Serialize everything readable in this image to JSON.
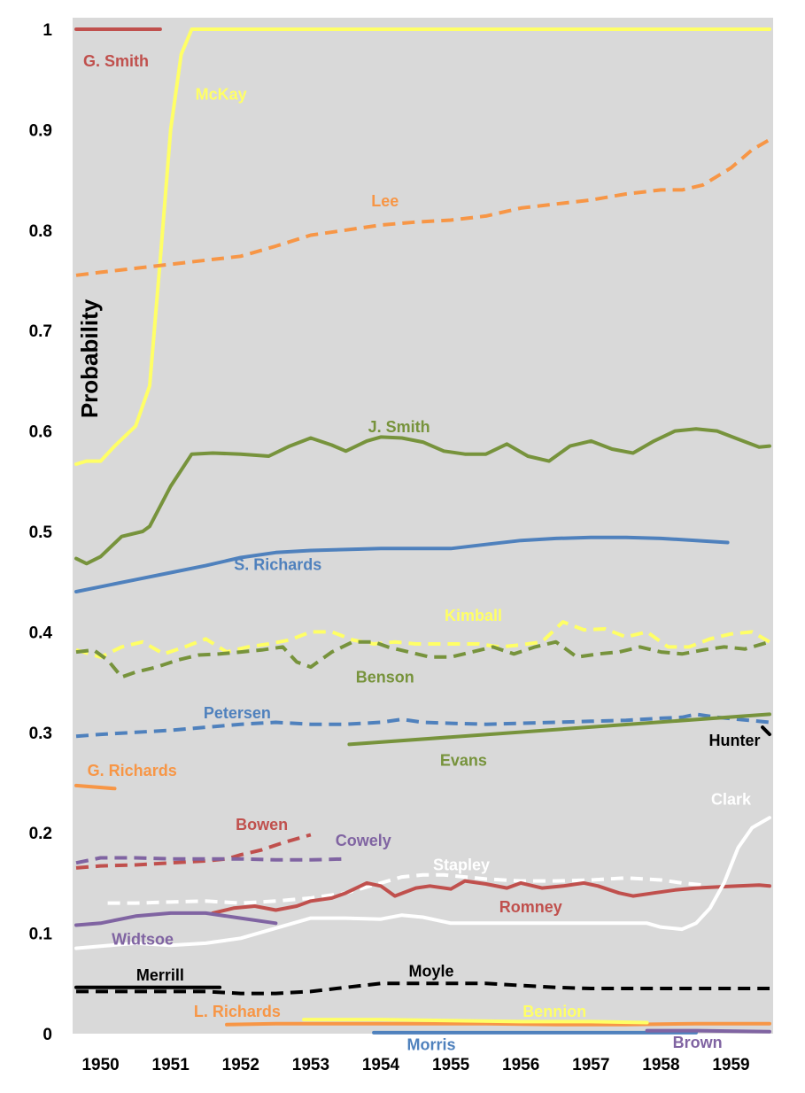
{
  "chart_data": {
    "type": "line",
    "xlabel": "",
    "ylabel": "Probability",
    "xlim": [
      1949.6,
      1959.6
    ],
    "ylim": [
      0,
      1
    ],
    "grid": false,
    "x_ticks": [
      "1950",
      "1951",
      "1952",
      "1953",
      "1954",
      "1955",
      "1956",
      "1957",
      "1958",
      "1959"
    ],
    "y_ticks": [
      "0",
      "0.1",
      "0.2",
      "0.3",
      "0.4",
      "0.5",
      "0.6",
      "0.7",
      "0.8",
      "0.9",
      "1"
    ],
    "colors": {
      "background": "#d9d9d9",
      "red": "#c0504d",
      "yellow": "#ffff66",
      "orange": "#f79646",
      "green": "#77933c",
      "blue": "#4f81bd",
      "purple": "#8064a2",
      "white": "#ffffff",
      "black": "#000000"
    },
    "series": [
      {
        "name": "G. Smith",
        "color": "red",
        "dash": false,
        "x": [
          1949.65,
          1950.85
        ],
        "y": [
          1.0,
          1.0
        ]
      },
      {
        "name": "McKay",
        "color": "yellow",
        "dash": false,
        "x": [
          1949.65,
          1949.8,
          1950.0,
          1950.2,
          1950.5,
          1950.7,
          1950.85,
          1951.0,
          1951.15,
          1951.3,
          1951.5,
          1953,
          1955,
          1957,
          1959.55
        ],
        "y": [
          0.567,
          0.57,
          0.57,
          0.585,
          0.605,
          0.645,
          0.77,
          0.9,
          0.975,
          1.0,
          1.0,
          1.0,
          1.0,
          1.0,
          1.0
        ]
      },
      {
        "name": "Lee",
        "color": "orange",
        "dash": true,
        "x": [
          1949.65,
          1950.0,
          1950.5,
          1951.0,
          1951.5,
          1952.0,
          1952.5,
          1953.0,
          1953.5,
          1954.0,
          1954.5,
          1955.0,
          1955.5,
          1956.0,
          1956.5,
          1957.0,
          1957.5,
          1958.0,
          1958.3,
          1958.6,
          1959.0,
          1959.3,
          1959.55
        ],
        "y": [
          0.755,
          0.758,
          0.762,
          0.766,
          0.77,
          0.774,
          0.784,
          0.795,
          0.8,
          0.805,
          0.808,
          0.81,
          0.814,
          0.822,
          0.826,
          0.83,
          0.836,
          0.84,
          0.84,
          0.845,
          0.862,
          0.88,
          0.89
        ]
      },
      {
        "name": "J. Smith",
        "color": "green",
        "dash": false,
        "x": [
          1949.65,
          1949.8,
          1950.0,
          1950.3,
          1950.6,
          1950.7,
          1951.0,
          1951.3,
          1951.6,
          1952.0,
          1952.4,
          1952.7,
          1953.0,
          1953.3,
          1953.5,
          1953.8,
          1954.0,
          1954.3,
          1954.6,
          1954.9,
          1955.2,
          1955.5,
          1955.8,
          1956.1,
          1956.4,
          1956.7,
          1957.0,
          1957.3,
          1957.6,
          1957.9,
          1958.2,
          1958.5,
          1958.8,
          1959.1,
          1959.4,
          1959.55
        ],
        "y": [
          0.473,
          0.468,
          0.475,
          0.495,
          0.5,
          0.505,
          0.545,
          0.577,
          0.578,
          0.577,
          0.575,
          0.585,
          0.593,
          0.586,
          0.58,
          0.59,
          0.594,
          0.593,
          0.589,
          0.58,
          0.577,
          0.577,
          0.587,
          0.575,
          0.57,
          0.585,
          0.59,
          0.582,
          0.578,
          0.59,
          0.6,
          0.602,
          0.6,
          0.592,
          0.584,
          0.585
        ]
      },
      {
        "name": "S. Richards",
        "color": "blue",
        "dash": false,
        "x": [
          1949.65,
          1950.0,
          1950.5,
          1951.0,
          1951.5,
          1952.0,
          1952.5,
          1953.0,
          1953.5,
          1954.0,
          1954.5,
          1955.0,
          1955.5,
          1956.0,
          1956.5,
          1957.0,
          1957.5,
          1958.0,
          1958.5,
          1958.95
        ],
        "y": [
          0.44,
          0.445,
          0.452,
          0.459,
          0.466,
          0.474,
          0.479,
          0.481,
          0.482,
          0.483,
          0.483,
          0.483,
          0.487,
          0.491,
          0.493,
          0.494,
          0.494,
          0.493,
          0.491,
          0.489
        ]
      },
      {
        "name": "Kimball",
        "color": "yellow",
        "dash": true,
        "x": [
          1949.65,
          1950.0,
          1950.3,
          1950.6,
          1950.9,
          1951.2,
          1951.5,
          1951.8,
          1952.1,
          1952.4,
          1952.7,
          1953.0,
          1953.3,
          1953.6,
          1953.9,
          1954.2,
          1954.5,
          1954.8,
          1955.1,
          1955.4,
          1955.7,
          1956.0,
          1956.3,
          1956.6,
          1956.9,
          1957.2,
          1957.5,
          1957.8,
          1958.1,
          1958.4,
          1958.7,
          1959.0,
          1959.3,
          1959.55
        ],
        "y": [
          0.382,
          0.375,
          0.385,
          0.39,
          0.378,
          0.385,
          0.393,
          0.38,
          0.385,
          0.388,
          0.392,
          0.4,
          0.4,
          0.392,
          0.388,
          0.39,
          0.388,
          0.388,
          0.388,
          0.388,
          0.385,
          0.387,
          0.39,
          0.41,
          0.402,
          0.403,
          0.395,
          0.4,
          0.385,
          0.385,
          0.393,
          0.398,
          0.4,
          0.39
        ]
      },
      {
        "name": "Benson",
        "color": "green",
        "dash": true,
        "x": [
          1949.65,
          1949.9,
          1950.1,
          1950.3,
          1950.5,
          1950.8,
          1951.1,
          1951.4,
          1951.7,
          1952.0,
          1952.3,
          1952.6,
          1952.8,
          1953.0,
          1953.3,
          1953.6,
          1953.9,
          1954.1,
          1954.4,
          1954.7,
          1955.0,
          1955.3,
          1955.6,
          1955.9,
          1956.2,
          1956.5,
          1956.8,
          1957.1,
          1957.4,
          1957.7,
          1958.0,
          1958.3,
          1958.6,
          1958.9,
          1959.2,
          1959.55
        ],
        "y": [
          0.38,
          0.382,
          0.372,
          0.355,
          0.36,
          0.365,
          0.372,
          0.377,
          0.378,
          0.38,
          0.382,
          0.385,
          0.37,
          0.365,
          0.38,
          0.39,
          0.39,
          0.385,
          0.38,
          0.375,
          0.375,
          0.38,
          0.385,
          0.378,
          0.385,
          0.39,
          0.375,
          0.378,
          0.38,
          0.385,
          0.38,
          0.378,
          0.382,
          0.385,
          0.383,
          0.39
        ]
      },
      {
        "name": "Petersen",
        "color": "blue",
        "dash": true,
        "x": [
          1949.65,
          1950.0,
          1950.5,
          1951.0,
          1951.5,
          1952.0,
          1952.5,
          1953.0,
          1953.5,
          1954.0,
          1954.3,
          1954.6,
          1955.0,
          1955.5,
          1956.0,
          1956.5,
          1957.0,
          1957.5,
          1958.0,
          1958.3,
          1958.5,
          1958.8,
          1959.1,
          1959.55
        ],
        "y": [
          0.296,
          0.298,
          0.3,
          0.302,
          0.305,
          0.308,
          0.31,
          0.308,
          0.308,
          0.31,
          0.313,
          0.31,
          0.309,
          0.308,
          0.309,
          0.31,
          0.311,
          0.312,
          0.314,
          0.315,
          0.318,
          0.315,
          0.313,
          0.31
        ]
      },
      {
        "name": "Evans",
        "color": "green",
        "dash": false,
        "x": [
          1953.55,
          1959.55
        ],
        "y": [
          0.288,
          0.318
        ]
      },
      {
        "name": "Hunter",
        "color": "black",
        "dash": false,
        "x": [
          1959.45,
          1959.55
        ],
        "y": [
          0.305,
          0.298
        ]
      },
      {
        "name": "G. Richards",
        "color": "orange",
        "dash": false,
        "x": [
          1949.65,
          1950.2
        ],
        "y": [
          0.247,
          0.244
        ]
      },
      {
        "name": "Bowen",
        "color": "red",
        "dash": true,
        "x": [
          1949.65,
          1950.0,
          1950.5,
          1951.0,
          1951.5,
          1951.8,
          1952.0,
          1952.3,
          1952.6,
          1952.9,
          1953.0
        ],
        "y": [
          0.165,
          0.167,
          0.168,
          0.17,
          0.172,
          0.174,
          0.178,
          0.183,
          0.19,
          0.196,
          0.198
        ]
      },
      {
        "name": "Cowely",
        "color": "purple",
        "dash": true,
        "x": [
          1949.65,
          1950.0,
          1950.5,
          1951.0,
          1951.5,
          1952.0,
          1952.5,
          1953.0,
          1953.5
        ],
        "y": [
          0.17,
          0.175,
          0.175,
          0.174,
          0.174,
          0.174,
          0.173,
          0.173,
          0.174
        ]
      },
      {
        "name": "Stapley",
        "color": "white",
        "dash": true,
        "x": [
          1950.1,
          1950.5,
          1951.0,
          1951.5,
          1952.0,
          1952.5,
          1953.0,
          1953.5,
          1954.0,
          1954.3,
          1954.6,
          1954.9,
          1955.2,
          1955.5,
          1956.0,
          1956.5,
          1957.0,
          1957.5,
          1958.0,
          1958.3,
          1958.6
        ],
        "y": [
          0.13,
          0.13,
          0.131,
          0.132,
          0.13,
          0.132,
          0.135,
          0.14,
          0.15,
          0.156,
          0.158,
          0.158,
          0.156,
          0.154,
          0.152,
          0.152,
          0.153,
          0.155,
          0.153,
          0.15,
          0.148
        ]
      },
      {
        "name": "Romney",
        "color": "red",
        "dash": false,
        "x": [
          1951.6,
          1951.9,
          1952.2,
          1952.5,
          1952.8,
          1953.0,
          1953.3,
          1953.5,
          1953.8,
          1954.0,
          1954.2,
          1954.5,
          1954.7,
          1955.0,
          1955.2,
          1955.5,
          1955.8,
          1956.0,
          1956.3,
          1956.6,
          1956.9,
          1957.1,
          1957.4,
          1957.6,
          1957.9,
          1958.2,
          1958.5,
          1958.8,
          1959.1,
          1959.4,
          1959.55
        ],
        "y": [
          0.12,
          0.125,
          0.127,
          0.123,
          0.127,
          0.132,
          0.135,
          0.14,
          0.15,
          0.147,
          0.137,
          0.145,
          0.147,
          0.144,
          0.152,
          0.149,
          0.145,
          0.15,
          0.145,
          0.147,
          0.15,
          0.147,
          0.14,
          0.137,
          0.14,
          0.143,
          0.145,
          0.146,
          0.147,
          0.148,
          0.147
        ]
      },
      {
        "name": "Clark",
        "color": "white",
        "dash": false,
        "x": [
          1949.65,
          1950.0,
          1950.5,
          1951.0,
          1951.5,
          1952.0,
          1952.5,
          1953.0,
          1953.5,
          1954.0,
          1954.3,
          1954.6,
          1955.0,
          1955.5,
          1956.0,
          1956.5,
          1957.0,
          1957.5,
          1957.8,
          1958.0,
          1958.3,
          1958.5,
          1958.7,
          1958.9,
          1959.1,
          1959.3,
          1959.55
        ],
        "y": [
          0.085,
          0.087,
          0.09,
          0.088,
          0.09,
          0.095,
          0.105,
          0.115,
          0.115,
          0.114,
          0.118,
          0.116,
          0.11,
          0.11,
          0.11,
          0.11,
          0.11,
          0.11,
          0.11,
          0.106,
          0.104,
          0.11,
          0.125,
          0.15,
          0.185,
          0.205,
          0.215
        ]
      },
      {
        "name": "Widtsoe",
        "color": "purple",
        "dash": false,
        "x": [
          1949.65,
          1950.0,
          1950.5,
          1951.0,
          1951.5,
          1952.0,
          1952.5
        ],
        "y": [
          0.108,
          0.11,
          0.117,
          0.12,
          0.12,
          0.115,
          0.11
        ]
      },
      {
        "name": "Merrill",
        "color": "black",
        "dash": false,
        "x": [
          1949.65,
          1951.7
        ],
        "y": [
          0.046,
          0.046
        ]
      },
      {
        "name": "Moyle",
        "color": "black",
        "dash": true,
        "x": [
          1949.65,
          1950.5,
          1951.5,
          1952.0,
          1952.5,
          1953.0,
          1953.5,
          1954.0,
          1954.5,
          1955.0,
          1955.5,
          1956.0,
          1956.5,
          1957.0,
          1957.5,
          1958.0,
          1958.5,
          1959.0,
          1959.55
        ],
        "y": [
          0.042,
          0.042,
          0.042,
          0.04,
          0.04,
          0.042,
          0.046,
          0.05,
          0.05,
          0.05,
          0.05,
          0.048,
          0.046,
          0.045,
          0.045,
          0.045,
          0.045,
          0.045,
          0.045
        ]
      },
      {
        "name": "L. Richards",
        "color": "orange",
        "dash": false,
        "x": [
          1951.8,
          1952.5,
          1953.5,
          1954.5,
          1955.5,
          1956.5,
          1957.5,
          1958.5,
          1959.55
        ],
        "y": [
          0.009,
          0.01,
          0.01,
          0.01,
          0.01,
          0.009,
          0.009,
          0.01,
          0.01
        ]
      },
      {
        "name": "Bennion",
        "color": "yellow",
        "dash": false,
        "x": [
          1952.9,
          1954.0,
          1955.0,
          1956.0,
          1957.0,
          1957.8
        ],
        "y": [
          0.014,
          0.014,
          0.013,
          0.012,
          0.012,
          0.011
        ]
      },
      {
        "name": "Morris",
        "color": "blue",
        "dash": false,
        "x": [
          1953.9,
          1958.5
        ],
        "y": [
          0.001,
          0.001
        ]
      },
      {
        "name": "Brown",
        "color": "purple",
        "dash": false,
        "x": [
          1957.8,
          1958.5,
          1959.55
        ],
        "y": [
          0.003,
          0.003,
          0.002
        ]
      }
    ],
    "annotations": [
      {
        "text": "G. Smith",
        "x": 1950.22,
        "y": 0.967,
        "color": "red"
      },
      {
        "text": "McKay",
        "x": 1951.72,
        "y": 0.934,
        "color": "yellow"
      },
      {
        "text": "Lee",
        "x": 1954.06,
        "y": 0.828,
        "color": "orange"
      },
      {
        "text": "J. Smith",
        "x": 1954.26,
        "y": 0.603,
        "color": "green"
      },
      {
        "text": "S. Richards",
        "x": 1952.53,
        "y": 0.466,
        "color": "blue"
      },
      {
        "text": "Kimball",
        "x": 1955.32,
        "y": 0.415,
        "color": "yellow"
      },
      {
        "text": "Benson",
        "x": 1954.06,
        "y": 0.354,
        "color": "green"
      },
      {
        "text": "Petersen",
        "x": 1951.95,
        "y": 0.318,
        "color": "blue"
      },
      {
        "text": "Evans",
        "x": 1955.18,
        "y": 0.271,
        "color": "green"
      },
      {
        "text": "Hunter",
        "x": 1959.05,
        "y": 0.291,
        "color": "black"
      },
      {
        "text": "G. Richards",
        "x": 1950.45,
        "y": 0.261,
        "color": "orange"
      },
      {
        "text": "Bowen",
        "x": 1952.3,
        "y": 0.207,
        "color": "red"
      },
      {
        "text": "Cowely",
        "x": 1953.75,
        "y": 0.191,
        "color": "purple"
      },
      {
        "text": "Clark",
        "x": 1959.0,
        "y": 0.232,
        "color": "white"
      },
      {
        "text": "Stapley",
        "x": 1955.15,
        "y": 0.167,
        "color": "white"
      },
      {
        "text": "Romney",
        "x": 1956.14,
        "y": 0.125,
        "color": "red"
      },
      {
        "text": "Widtsoe",
        "x": 1950.6,
        "y": 0.093,
        "color": "purple"
      },
      {
        "text": "Merrill",
        "x": 1950.85,
        "y": 0.057,
        "color": "black"
      },
      {
        "text": "Moyle",
        "x": 1954.72,
        "y": 0.061,
        "color": "black"
      },
      {
        "text": "L. Richards",
        "x": 1951.95,
        "y": 0.021,
        "color": "orange"
      },
      {
        "text": "Bennion",
        "x": 1956.48,
        "y": 0.021,
        "color": "yellow"
      },
      {
        "text": "Morris",
        "x": 1954.72,
        "y": -0.012,
        "color": "blue"
      },
      {
        "text": "Brown",
        "x": 1958.52,
        "y": -0.01,
        "color": "purple"
      }
    ]
  }
}
